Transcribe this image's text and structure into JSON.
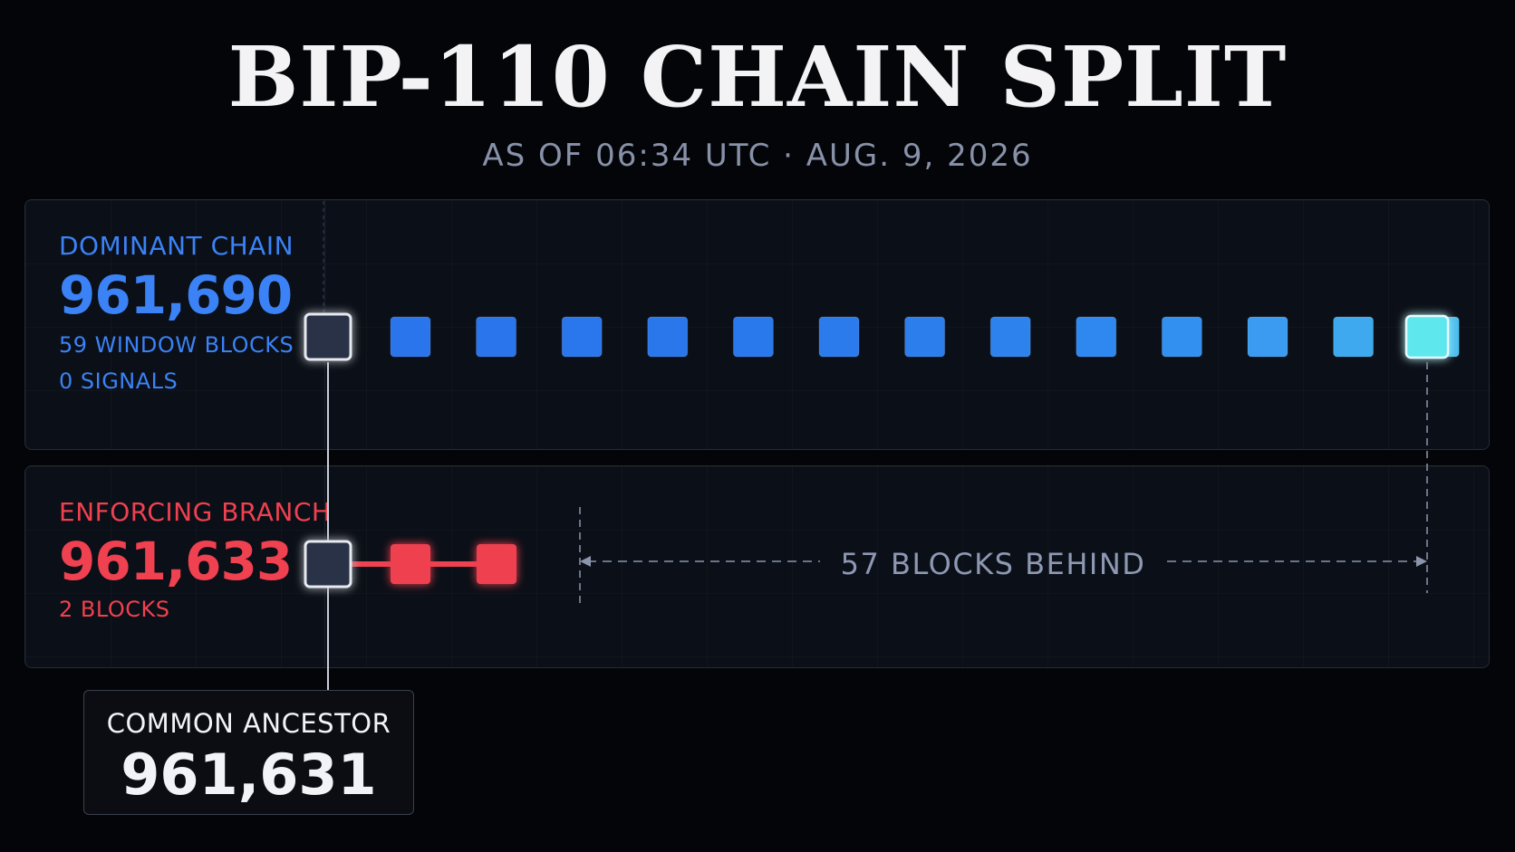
{
  "header": {
    "title": "BIP-110 CHAIN SPLIT",
    "subtitle": "AS OF 06:34 UTC · AUG. 9, 2026"
  },
  "dominant": {
    "label": "DOMINANT CHAIN",
    "height": "961,690",
    "window_blocks": "59 WINDOW BLOCKS",
    "signals": "0 SIGNALS",
    "color": "#3b82f6",
    "tip_color": "#5ee7ee"
  },
  "enforcing": {
    "label": "ENFORCING BRANCH",
    "height": "961,633",
    "blocks": "2 BLOCKS",
    "color": "#ef4150"
  },
  "gap": {
    "label": "57 BLOCKS BEHIND"
  },
  "ancestor": {
    "label": "COMMON ANCESTOR",
    "height": "961,631"
  }
}
